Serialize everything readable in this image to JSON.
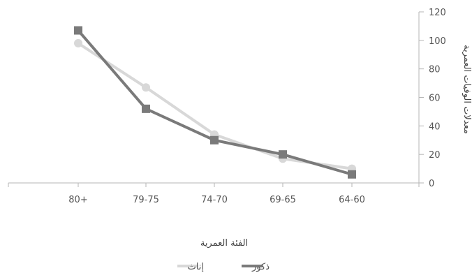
{
  "chart_data": {
    "type": "line",
    "categories": [
      "80+",
      "79-75",
      "74-70",
      "69-65",
      "64-60"
    ],
    "series": [
      {
        "name": "ذكور",
        "values": [
          107,
          52,
          30,
          20,
          6
        ],
        "color": "#7a7a7a",
        "marker": "square"
      },
      {
        "name": "إناث",
        "values": [
          98,
          67,
          34,
          17,
          10
        ],
        "color": "#d8d8d8",
        "marker": "circle"
      }
    ],
    "xlabel": "الفئة العمرية",
    "ylabel": "معدلات الوفيات العمرية",
    "ylim": [
      0,
      120
    ],
    "yticks": [
      0,
      20,
      40,
      60,
      80,
      100,
      120
    ],
    "y_axis_side": "right",
    "grid": false,
    "legend_position": "bottom-center"
  }
}
